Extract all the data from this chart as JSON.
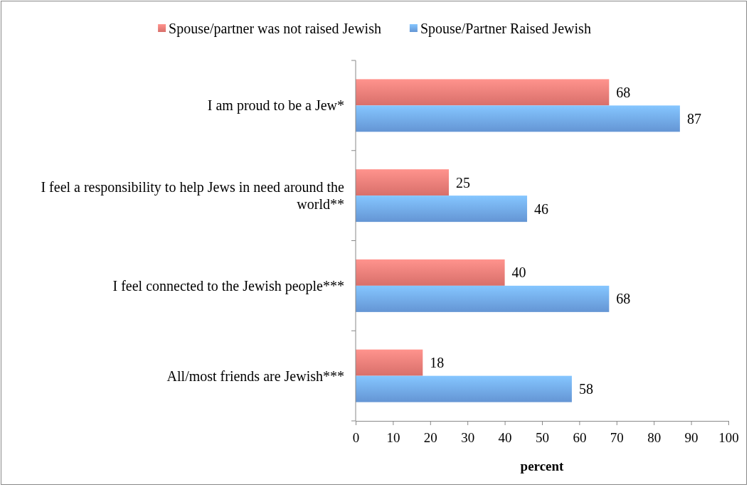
{
  "chart_data": {
    "type": "bar",
    "orientation": "horizontal",
    "xlabel": "percent",
    "categories": [
      "I am proud to be a Jew*",
      "I feel a responsibility to help Jews in need around the world**",
      "I feel connected to the Jewish people***",
      "All/most friends are Jewish***"
    ],
    "series": [
      {
        "name": "Spouse/partner was not raised Jewish",
        "color": "#f07b76",
        "values": [
          68,
          25,
          40,
          18
        ]
      },
      {
        "name": "Spouse/Partner Raised Jewish",
        "color": "#6fa6ec",
        "values": [
          87,
          46,
          68,
          58
        ]
      }
    ],
    "xlim": [
      0,
      100
    ],
    "xticks": [
      0,
      10,
      20,
      30,
      40,
      50,
      60,
      70,
      80,
      90,
      100
    ],
    "data_labels": true,
    "legend": "top",
    "grid": false
  }
}
